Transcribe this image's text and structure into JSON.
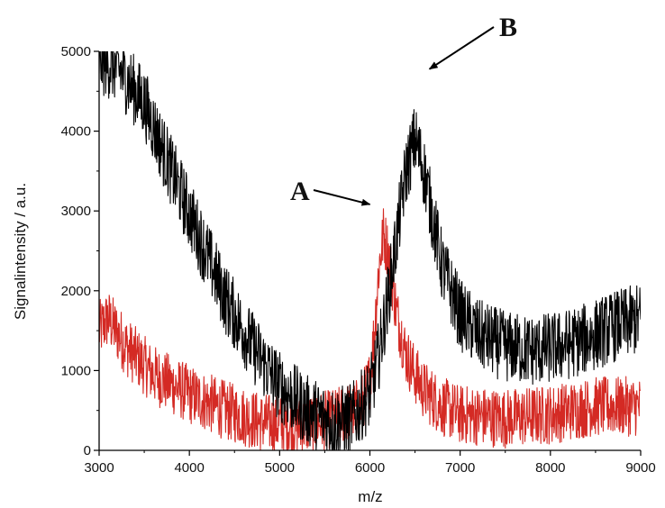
{
  "chart_data": {
    "type": "line",
    "title": "",
    "xlabel": "m/z",
    "ylabel": "Signalintensity / a.u.",
    "xlim": [
      3000,
      9000
    ],
    "ylim": [
      0,
      5000
    ],
    "xticks": [
      3000,
      4000,
      5000,
      6000,
      7000,
      8000,
      9000
    ],
    "yticks": [
      0,
      1000,
      2000,
      3000,
      4000,
      5000
    ],
    "xtick_labels": [
      "3000",
      "4000",
      "5000",
      "6000",
      "7000",
      "8000",
      "9000"
    ],
    "ytick_labels": [
      "0",
      "1000",
      "2000",
      "3000",
      "4000",
      "5000"
    ],
    "grid": false,
    "legend": "none",
    "noise_amplitude": [
      900,
      750
    ],
    "series": [
      {
        "color": "#000000",
        "x": [
          3000,
          3200,
          3500,
          3800,
          4100,
          4400,
          4700,
          5000,
          5300,
          5600,
          5800,
          6000,
          6100,
          6200,
          6300,
          6400,
          6500,
          6600,
          6700,
          6800,
          7000,
          7200,
          7500,
          7800,
          8100,
          8400,
          8700,
          9000
        ],
        "y": [
          4900,
          4800,
          4350,
          3500,
          2700,
          1900,
          1300,
          800,
          500,
          350,
          400,
          700,
          1200,
          1900,
          2700,
          3500,
          3900,
          3500,
          2900,
          2300,
          1700,
          1450,
          1300,
          1250,
          1300,
          1400,
          1550,
          1650
        ]
      },
      {
        "color": "#d42a24",
        "x": [
          3000,
          3100,
          3300,
          3600,
          4000,
          4400,
          4800,
          5200,
          5600,
          5900,
          6000,
          6050,
          6100,
          6150,
          6200,
          6300,
          6400,
          6500,
          6600,
          6800,
          7000,
          7500,
          8000,
          8500,
          9000
        ],
        "y": [
          1500,
          1650,
          1300,
          950,
          700,
          500,
          350,
          300,
          400,
          550,
          900,
          1500,
          2300,
          2700,
          2500,
          1700,
          1200,
          950,
          750,
          550,
          450,
          400,
          450,
          550,
          550
        ]
      }
    ],
    "annotations": [
      {
        "label": "A",
        "x": 6100,
        "y": 3150
      },
      {
        "label": "B",
        "x": 6500,
        "y": 4800
      }
    ]
  }
}
